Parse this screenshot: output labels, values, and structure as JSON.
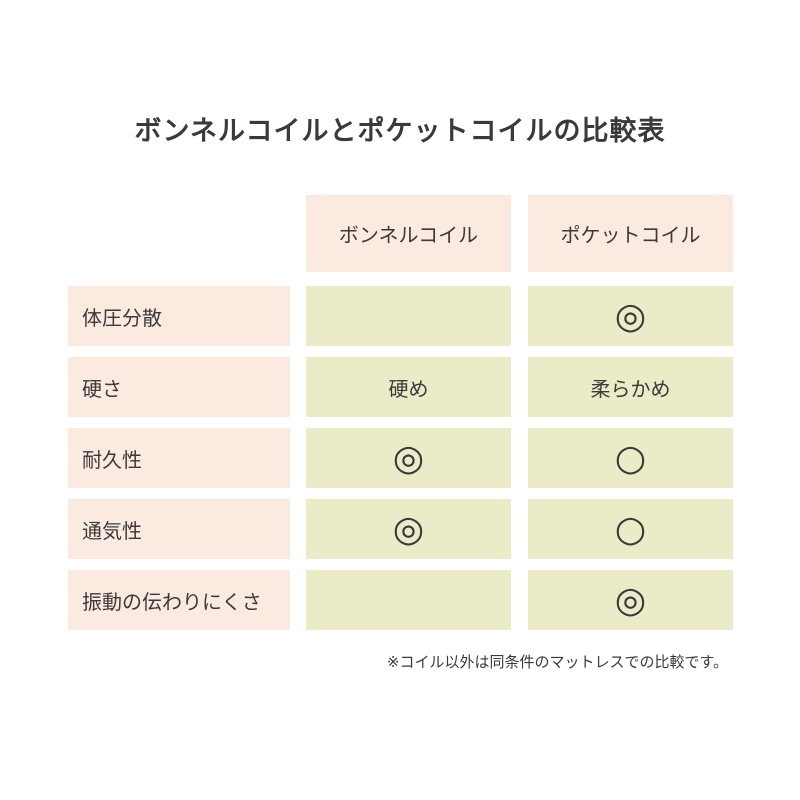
{
  "title": "ボンネルコイルとポケットコイルの比較表",
  "table": {
    "columns": [
      "ボンネルコイル",
      "ポケットコイル"
    ],
    "rows": [
      [
        "体圧分散",
        null,
        "◎"
      ],
      [
        "硬さ",
        "硬め",
        "柔らかめ"
      ],
      [
        "耐久性",
        "◎",
        "○"
      ],
      [
        "通気性",
        "◎",
        "○"
      ],
      [
        "振動の伝わりにくさ",
        null,
        "◎"
      ]
    ]
  },
  "note": "※コイル以外は同条件のマットレスでの比較です。"
}
